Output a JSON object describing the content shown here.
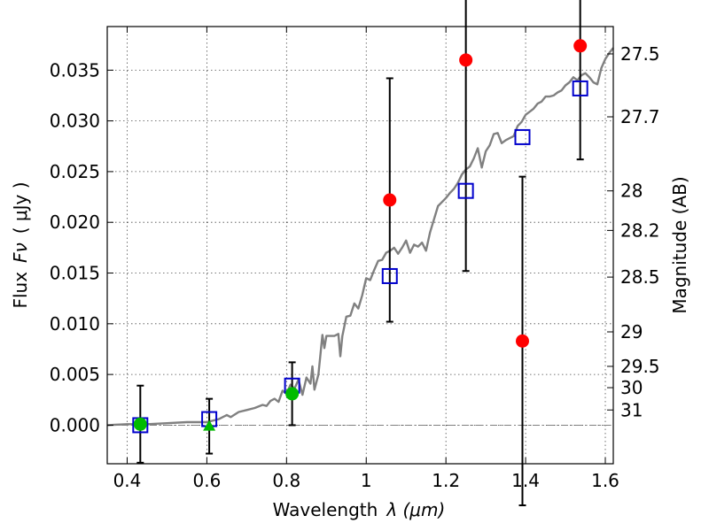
{
  "chart_data": {
    "type": "scatter",
    "xlabel": "Wavelength",
    "xlabel_symbol": "λ (μm)",
    "ylabel": "Flux",
    "ylabel_symbol": "Fν",
    "ylabel_unit": "( μJy )",
    "y2label": "Magnitude (AB)",
    "xlim": [
      0.35,
      1.62
    ],
    "ylim": [
      -0.0038,
      0.0393
    ],
    "grid": true,
    "x_ticks": [
      {
        "value": 0.4,
        "label": "0.4"
      },
      {
        "value": 0.6,
        "label": "0.6"
      },
      {
        "value": 0.8,
        "label": "0.8"
      },
      {
        "value": 1.0,
        "label": "1"
      },
      {
        "value": 1.2,
        "label": "1.2"
      },
      {
        "value": 1.4,
        "label": "1.4"
      },
      {
        "value": 1.6,
        "label": "1.6"
      }
    ],
    "y_ticks": [
      {
        "value": 0.0,
        "label": "0.000"
      },
      {
        "value": 0.005,
        "label": "0.005"
      },
      {
        "value": 0.01,
        "label": "0.010"
      },
      {
        "value": 0.015,
        "label": "0.015"
      },
      {
        "value": 0.02,
        "label": "0.020"
      },
      {
        "value": 0.025,
        "label": "0.025"
      },
      {
        "value": 0.03,
        "label": "0.030"
      },
      {
        "value": 0.035,
        "label": "0.035"
      }
    ],
    "mag_ticks": [
      {
        "flux": 0.0366,
        "label": "27.5"
      },
      {
        "flux": 0.0304,
        "label": "27.7"
      },
      {
        "flux": 0.0231,
        "label": "28"
      },
      {
        "flux": 0.0192,
        "label": "28.2"
      },
      {
        "flux": 0.0146,
        "label": "28.5"
      },
      {
        "flux": 0.0092,
        "label": "29"
      },
      {
        "flux": 0.0058,
        "label": "29.5"
      },
      {
        "flux": 0.0037,
        "label": "30"
      },
      {
        "flux": 0.0015,
        "label": "31"
      }
    ],
    "model_spectrum": {
      "color": "#808080",
      "x": [
        0.35,
        0.4,
        0.45,
        0.5,
        0.55,
        0.6,
        0.63,
        0.65,
        0.66,
        0.68,
        0.7,
        0.72,
        0.74,
        0.75,
        0.76,
        0.77,
        0.78,
        0.79,
        0.8,
        0.81,
        0.82,
        0.83,
        0.84,
        0.85,
        0.86,
        0.865,
        0.87,
        0.88,
        0.89,
        0.895,
        0.9,
        0.91,
        0.92,
        0.93,
        0.935,
        0.94,
        0.95,
        0.96,
        0.97,
        0.98,
        0.99,
        1.0,
        1.01,
        1.02,
        1.03,
        1.04,
        1.05,
        1.06,
        1.07,
        1.08,
        1.09,
        1.1,
        1.11,
        1.12,
        1.13,
        1.14,
        1.15,
        1.16,
        1.17,
        1.18,
        1.19,
        1.2,
        1.21,
        1.22,
        1.23,
        1.24,
        1.25,
        1.26,
        1.27,
        1.28,
        1.29,
        1.3,
        1.31,
        1.32,
        1.33,
        1.34,
        1.35,
        1.36,
        1.37,
        1.38,
        1.39,
        1.4,
        1.41,
        1.42,
        1.43,
        1.44,
        1.45,
        1.46,
        1.47,
        1.48,
        1.49,
        1.5,
        1.51,
        1.52,
        1.53,
        1.54,
        1.55,
        1.56,
        1.57,
        1.58,
        1.59,
        1.6,
        1.61,
        1.62
      ],
      "y": [
        0.0,
        0.0001,
        0.0001,
        0.0002,
        0.0003,
        0.0003,
        0.0006,
        0.001,
        0.0008,
        0.0013,
        0.0015,
        0.0017,
        0.002,
        0.0019,
        0.0024,
        0.0026,
        0.0023,
        0.0034,
        0.0031,
        0.004,
        0.0036,
        0.0045,
        0.003,
        0.0047,
        0.0041,
        0.0058,
        0.0035,
        0.005,
        0.0089,
        0.0076,
        0.0088,
        0.0088,
        0.0088,
        0.009,
        0.0068,
        0.0088,
        0.0107,
        0.0108,
        0.012,
        0.0115,
        0.0128,
        0.0145,
        0.0143,
        0.0153,
        0.0162,
        0.0163,
        0.017,
        0.0172,
        0.0175,
        0.0169,
        0.0175,
        0.0182,
        0.017,
        0.0178,
        0.0176,
        0.018,
        0.0172,
        0.019,
        0.0203,
        0.0216,
        0.022,
        0.0224,
        0.0229,
        0.0233,
        0.0239,
        0.0247,
        0.0252,
        0.0255,
        0.0263,
        0.0273,
        0.0254,
        0.027,
        0.0276,
        0.0287,
        0.0288,
        0.0278,
        0.0281,
        0.0283,
        0.0285,
        0.0295,
        0.0299,
        0.0306,
        0.0309,
        0.0312,
        0.0317,
        0.0319,
        0.0324,
        0.0324,
        0.0325,
        0.0328,
        0.033,
        0.0335,
        0.0338,
        0.0343,
        0.034,
        0.0345,
        0.0347,
        0.0343,
        0.0338,
        0.0336,
        0.0352,
        0.0361,
        0.0367,
        0.0372
      ]
    },
    "model_photometry": {
      "color": "#0000cc",
      "marker": "square",
      "points": [
        {
          "x": 0.433,
          "y": 0.0
        },
        {
          "x": 0.606,
          "y": 0.0006
        },
        {
          "x": 0.814,
          "y": 0.0039
        },
        {
          "x": 1.059,
          "y": 0.0147
        },
        {
          "x": 1.25,
          "y": 0.0231
        },
        {
          "x": 1.392,
          "y": 0.0284
        },
        {
          "x": 1.537,
          "y": 0.0332
        }
      ]
    },
    "observed_points": [
      {
        "x": 0.433,
        "y": 0.0001,
        "err": 0.0038,
        "color": "#00bb00",
        "marker": "circle"
      },
      {
        "x": 0.606,
        "y": -0.0001,
        "err": 0.0027,
        "color": "#00bb00",
        "marker": "triangle"
      },
      {
        "x": 0.814,
        "y": 0.0031,
        "err": 0.0031,
        "color": "#00bb00",
        "marker": "circle"
      },
      {
        "x": 1.059,
        "y": 0.0222,
        "err": 0.012,
        "color": "#ff0000",
        "marker": "circle"
      },
      {
        "x": 1.25,
        "y": 0.036,
        "err": 0.0208,
        "color": "#ff0000",
        "marker": "circle"
      },
      {
        "x": 1.392,
        "y": 0.0083,
        "err": 0.0162,
        "color": "#ff0000",
        "marker": "circle"
      },
      {
        "x": 1.537,
        "y": 0.0374,
        "err": 0.0112,
        "color": "#ff0000",
        "marker": "circle"
      }
    ],
    "zero_line": {
      "y": 0.0,
      "color": "#808080",
      "style": "dashdot"
    }
  }
}
